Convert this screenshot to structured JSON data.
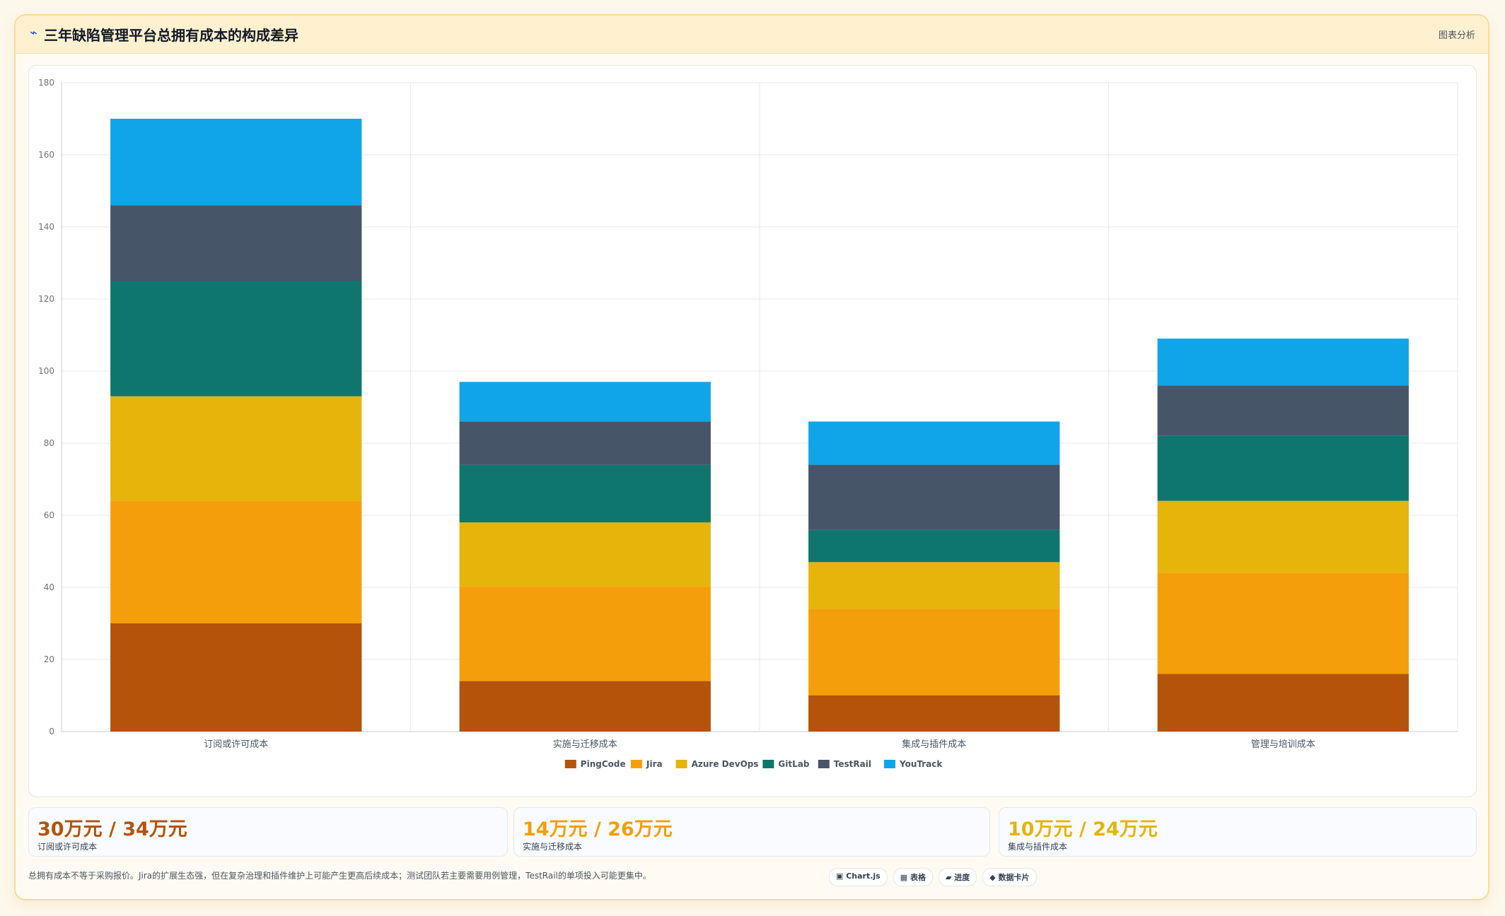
{
  "header": {
    "icon": "⌁",
    "title": "三年缺陷管理平台总拥有成本的构成差异",
    "badge": "图表分析"
  },
  "colors": {
    "PingCode": "#b45309",
    "Jira": "#f59e0b",
    "Azure DevOps": "#e6b40a",
    "GitLab": "#0f766e",
    "TestRail": "#475569",
    "YouTrack": "#10a5e9"
  },
  "chart_data": {
    "type": "bar",
    "stacked": true,
    "categories": [
      "订阅或许可成本",
      "实施与迁移成本",
      "集成与插件成本",
      "管理与培训成本"
    ],
    "series": [
      {
        "name": "PingCode",
        "values": [
          30,
          14,
          10,
          16
        ]
      },
      {
        "name": "Jira",
        "values": [
          34,
          26,
          24,
          28
        ]
      },
      {
        "name": "Azure DevOps",
        "values": [
          29,
          18,
          13,
          20
        ]
      },
      {
        "name": "GitLab",
        "values": [
          32,
          16,
          9,
          18
        ]
      },
      {
        "name": "TestRail",
        "values": [
          21,
          12,
          18,
          14
        ]
      },
      {
        "name": "YouTrack",
        "values": [
          24,
          11,
          12,
          13
        ]
      }
    ],
    "ylim": [
      0,
      180
    ],
    "yticks": [
      0,
      20,
      40,
      60,
      80,
      100,
      120,
      140,
      160,
      180
    ],
    "grid": true,
    "legend": "bottom"
  },
  "cards": [
    {
      "value": "30万元 / 34万元",
      "label": "订阅或许可成本",
      "color": "#b45309"
    },
    {
      "value": "14万元 / 26万元",
      "label": "实施与迁移成本",
      "color": "#f59e0b"
    },
    {
      "value": "10万元 / 24万元",
      "label": "集成与插件成本",
      "color": "#e6b40a"
    }
  ],
  "footnote": "总拥有成本不等于采购报价。Jira的扩展生态强，但在复杂治理和插件维护上可能产生更高后续成本；测试团队若主要需要用例管理，TestRail的单项投入可能更集中。",
  "chips": [
    {
      "label": "▣ Chart.js"
    },
    {
      "label": "▦ 表格"
    },
    {
      "label": "▰ 进度"
    },
    {
      "label": "◆ 数据卡片"
    }
  ]
}
